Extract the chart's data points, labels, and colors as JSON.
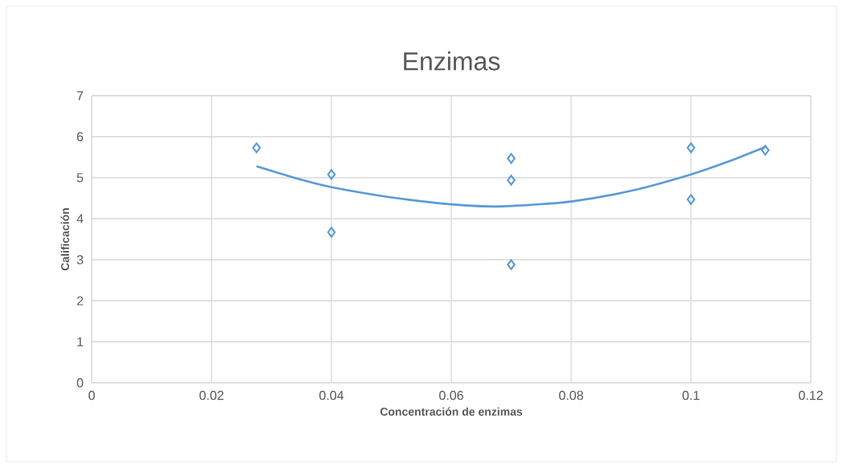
{
  "chart_data": {
    "type": "scatter",
    "title": "Enzimas",
    "xlabel": "Concentración de enzimas",
    "ylabel": "Calificación",
    "xlim": [
      0,
      0.12
    ],
    "xticks": [
      0,
      0.02,
      0.04,
      0.06,
      0.08,
      0.1,
      0.12
    ],
    "ylim": [
      0,
      7
    ],
    "yticks": [
      0,
      1,
      2,
      3,
      4,
      5,
      6,
      7
    ],
    "grid": true,
    "series": [
      {
        "color": "#5b9bd5",
        "marker": "diamond",
        "x": [
          0.0275,
          0.04,
          0.04,
          0.07,
          0.07,
          0.07,
          0.1,
          0.1,
          0.1124
        ],
        "values": [
          5.73,
          5.08,
          3.67,
          5.47,
          4.94,
          2.88,
          5.73,
          4.47,
          5.67
        ]
      },
      {
        "type": "line",
        "color": "#5b9bd5",
        "marker": "none",
        "line_style": "solid",
        "x": [
          0.0275,
          0.035,
          0.04,
          0.05,
          0.06,
          0.066,
          0.07,
          0.08,
          0.09,
          0.1,
          0.106,
          0.1124
        ],
        "values": [
          5.28,
          4.95,
          4.77,
          4.52,
          4.35,
          4.3,
          4.31,
          4.42,
          4.68,
          5.08,
          5.38,
          5.75
        ]
      }
    ]
  }
}
